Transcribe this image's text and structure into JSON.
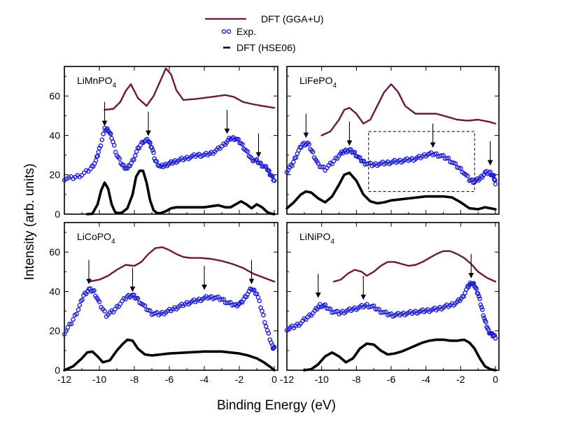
{
  "figure": {
    "ylabel": "Intensity (arb. units)",
    "xlabel": "Binding Energy (eV)",
    "legend": [
      {
        "label": "DFT (GGA+U)",
        "style": "line",
        "color": "#6b1840"
      },
      {
        "label": "Exp.",
        "style": "circles",
        "color": "#1f1fd6"
      },
      {
        "label": "DFT (HSE06)",
        "style": "thick-line",
        "color": "#000000"
      }
    ]
  },
  "chart_data": [
    {
      "type": "line",
      "title": "LiMnPO4",
      "label_main": "LiMnPO",
      "label_sub": "4",
      "xlim": [
        -12,
        0.2
      ],
      "ylim": [
        0,
        75
      ],
      "xticks": [
        -12,
        -10,
        -8,
        -6,
        -4,
        -2,
        0
      ],
      "yticks": [
        0,
        20,
        40,
        60
      ],
      "series": [
        {
          "name": "DFT (GGA+U)",
          "color": "#6b1840",
          "x": [
            -9.7,
            -9.2,
            -8.8,
            -8.5,
            -8.2,
            -7.8,
            -7.3,
            -6.9,
            -6.5,
            -6.2,
            -5.9,
            -5.6,
            -5.2,
            -4.5,
            -3.6,
            -2.8,
            -2.3,
            -1.8,
            -1.3,
            -0.7,
            0.0
          ],
          "y": [
            53,
            53.5,
            57,
            62.5,
            66,
            59,
            55,
            60,
            68,
            74,
            71,
            63,
            58,
            58.5,
            59.5,
            60.5,
            59.5,
            57,
            56,
            55,
            54
          ]
        },
        {
          "name": "Exp.",
          "color": "#1f1fd6",
          "x": [
            -12.0,
            -11.5,
            -11.0,
            -10.5,
            -10.2,
            -10.0,
            -9.7,
            -9.5,
            -9.3,
            -9.0,
            -8.7,
            -8.4,
            -8.1,
            -7.8,
            -7.5,
            -7.2,
            -7.0,
            -6.8,
            -6.5,
            -6.2,
            -5.9,
            -5.6,
            -5.2,
            -4.8,
            -4.4,
            -4.0,
            -3.6,
            -3.2,
            -2.8,
            -2.5,
            -2.2,
            -1.9,
            -1.6,
            -1.3,
            -1.0,
            -0.7,
            -0.4,
            -0.2,
            0.0
          ],
          "y": [
            18,
            18.5,
            20,
            23,
            27,
            33,
            43,
            43,
            39,
            30,
            25,
            23,
            27,
            33,
            37,
            37.5,
            34,
            27,
            24,
            25,
            26,
            27,
            28,
            29,
            30,
            30,
            31,
            33,
            36,
            38.5,
            38.5,
            36,
            32,
            28,
            27,
            25,
            23,
            20,
            17
          ]
        },
        {
          "name": "DFT (HSE06)",
          "color": "#000000",
          "x": [
            -10.7,
            -10.4,
            -10.1,
            -9.9,
            -9.7,
            -9.5,
            -9.3,
            -9.1,
            -8.9,
            -8.7,
            -8.4,
            -8.1,
            -7.9,
            -7.7,
            -7.5,
            -7.3,
            -7.1,
            -6.9,
            -6.7,
            -6.5,
            -6.2,
            -5.9,
            -5.6,
            -5.2,
            -4.8,
            -4.4,
            -4.0,
            -3.6,
            -3.2,
            -2.8,
            -2.5,
            -2.2,
            -1.9,
            -1.6,
            -1.3,
            -1.0,
            -0.7,
            -0.4,
            -0.2,
            0.0
          ],
          "y": [
            0,
            0.2,
            5,
            12,
            16,
            13,
            5,
            1,
            0.5,
            0.8,
            3,
            10,
            19,
            22,
            22,
            16,
            7,
            2,
            0.5,
            0.5,
            1.5,
            3,
            3.5,
            3.5,
            3.5,
            3.5,
            3.5,
            4,
            4.5,
            3.5,
            3.5,
            5,
            6.5,
            5,
            3,
            5,
            3.5,
            1,
            0.3,
            0
          ]
        }
      ],
      "annotations": [
        {
          "type": "arrow",
          "x": -9.7,
          "y_from": 57,
          "y_to": 45
        },
        {
          "type": "arrow",
          "x": -7.2,
          "y_from": 52,
          "y_to": 40
        },
        {
          "type": "arrow",
          "x": -2.7,
          "y_from": 53,
          "y_to": 41
        },
        {
          "type": "arrow",
          "x": -0.9,
          "y_from": 41,
          "y_to": 29
        }
      ]
    },
    {
      "type": "line",
      "title": "LiFePO4",
      "label_main": "LiFePO",
      "label_sub": "4",
      "xlim": [
        -12,
        0.2
      ],
      "ylim": [
        0,
        75
      ],
      "xticks": [
        -12,
        -10,
        -8,
        -6,
        -4,
        -2,
        0
      ],
      "yticks": [
        0,
        20,
        40,
        60
      ],
      "series": [
        {
          "name": "DFT (GGA+U)",
          "color": "#6b1840",
          "x": [
            -10.0,
            -9.5,
            -9.0,
            -8.7,
            -8.4,
            -8.0,
            -7.6,
            -7.2,
            -6.8,
            -6.4,
            -6.0,
            -5.6,
            -5.2,
            -4.6,
            -4.0,
            -3.4,
            -2.8,
            -2.2,
            -1.6,
            -1.0,
            -0.4,
            0.0
          ],
          "y": [
            40,
            42,
            48,
            53,
            54,
            51,
            46,
            48,
            55,
            62,
            66,
            62,
            55,
            51,
            51,
            51,
            49.5,
            48,
            47.5,
            48,
            47,
            46
          ]
        },
        {
          "name": "Exp.",
          "color": "#1f1fd6",
          "x": [
            -12.0,
            -11.7,
            -11.4,
            -11.1,
            -10.8,
            -10.5,
            -10.2,
            -9.8,
            -9.4,
            -9.0,
            -8.7,
            -8.4,
            -8.1,
            -7.8,
            -7.5,
            -7.1,
            -6.7,
            -6.3,
            -5.9,
            -5.5,
            -5.1,
            -4.7,
            -4.3,
            -3.9,
            -3.5,
            -3.1,
            -2.7,
            -2.3,
            -1.9,
            -1.5,
            -1.2,
            -0.9,
            -0.6,
            -0.3,
            -0.1,
            0.0
          ],
          "y": [
            22,
            25,
            31,
            35.5,
            36,
            31,
            25,
            23,
            26,
            30,
            32,
            32.5,
            31,
            28,
            26,
            25,
            25.5,
            26,
            26.5,
            27,
            27.5,
            28,
            29,
            30.5,
            30.5,
            29.5,
            28,
            25,
            22,
            17.5,
            16.5,
            18,
            21,
            21,
            19,
            16
          ]
        },
        {
          "name": "DFT (HSE06)",
          "color": "#000000",
          "x": [
            -12.0,
            -11.6,
            -11.2,
            -10.9,
            -10.6,
            -10.2,
            -9.8,
            -9.4,
            -9.0,
            -8.7,
            -8.4,
            -8.0,
            -7.6,
            -7.2,
            -6.8,
            -6.4,
            -6.0,
            -5.5,
            -5.0,
            -4.5,
            -4.0,
            -3.5,
            -3.0,
            -2.5,
            -2.0,
            -1.5,
            -1.0,
            -0.6,
            -0.3,
            0.0
          ],
          "y": [
            3,
            6,
            10,
            11.5,
            11,
            8,
            6,
            9,
            15,
            20,
            21,
            17,
            10,
            6.5,
            5.5,
            6,
            7,
            7.5,
            8,
            8.5,
            9,
            9,
            9,
            8.5,
            6,
            3,
            2.5,
            3.5,
            3,
            2.5
          ]
        }
      ],
      "annotations": [
        {
          "type": "arrow",
          "x": -10.9,
          "y_from": 51,
          "y_to": 39
        },
        {
          "type": "arrow",
          "x": -8.4,
          "y_from": 47,
          "y_to": 35
        },
        {
          "type": "arrow",
          "x": -3.6,
          "y_from": 46,
          "y_to": 34
        },
        {
          "type": "arrow",
          "x": -0.3,
          "y_from": 37,
          "y_to": 25
        },
        {
          "type": "dashed-box",
          "x0": -7.3,
          "x1": -1.2,
          "y0": 11.5,
          "y1": 42
        }
      ]
    },
    {
      "type": "line",
      "title": "LiCoPO4",
      "label_main": "LiCoPO",
      "label_sub": "4",
      "xlim": [
        -12,
        0.2
      ],
      "ylim": [
        0,
        75
      ],
      "xticks": [
        -12,
        -10,
        -8,
        -6,
        -4,
        -2,
        0
      ],
      "yticks": [
        0,
        20,
        40,
        60
      ],
      "series": [
        {
          "name": "DFT (GGA+U)",
          "color": "#6b1840",
          "x": [
            -10.6,
            -10.0,
            -9.5,
            -9.0,
            -8.5,
            -8.0,
            -7.6,
            -7.2,
            -6.8,
            -6.4,
            -6.0,
            -5.6,
            -5.2,
            -4.8,
            -4.2,
            -3.6,
            -3.0,
            -2.4,
            -1.8,
            -1.2,
            -0.6,
            0.0
          ],
          "y": [
            45,
            46,
            48,
            51,
            53.5,
            53,
            55,
            59,
            62,
            62.5,
            61,
            59,
            57.5,
            57,
            57,
            56.5,
            55.5,
            54,
            52,
            49,
            47,
            45
          ]
        },
        {
          "name": "Exp.",
          "color": "#1f1fd6",
          "x": [
            -12.0,
            -11.6,
            -11.2,
            -10.9,
            -10.6,
            -10.3,
            -10.0,
            -9.6,
            -9.2,
            -8.8,
            -8.4,
            -8.1,
            -7.8,
            -7.4,
            -7.0,
            -6.6,
            -6.2,
            -5.8,
            -5.4,
            -5.0,
            -4.6,
            -4.2,
            -3.8,
            -3.4,
            -3.0,
            -2.6,
            -2.2,
            -1.9,
            -1.6,
            -1.3,
            -1.0,
            -0.7,
            -0.4,
            -0.1,
            0.0
          ],
          "y": [
            19,
            24,
            31,
            38,
            41,
            40,
            34,
            28,
            30,
            34,
            37.5,
            38,
            36,
            32,
            29,
            28.5,
            29.5,
            31,
            32.5,
            34,
            35,
            36,
            37,
            37,
            36,
            34,
            33,
            34,
            38,
            41.5,
            39,
            30,
            20,
            12,
            11
          ]
        },
        {
          "name": "DFT (HSE06)",
          "color": "#000000",
          "x": [
            -12.0,
            -11.5,
            -11.0,
            -10.7,
            -10.4,
            -10.1,
            -9.8,
            -9.4,
            -9.0,
            -8.7,
            -8.4,
            -8.1,
            -7.8,
            -7.4,
            -7.0,
            -6.5,
            -6.0,
            -5.0,
            -4.0,
            -3.5,
            -3.0,
            -2.5,
            -2.0,
            -1.5,
            -1.0,
            -0.6,
            -0.2,
            0.0
          ],
          "y": [
            0,
            2,
            6,
            9,
            9.5,
            7,
            4,
            5,
            10,
            13,
            15.5,
            15,
            11,
            8,
            7.5,
            8,
            8.5,
            9,
            9.5,
            9.5,
            9.5,
            9,
            8.5,
            7.5,
            6,
            4,
            1.5,
            0
          ]
        }
      ],
      "annotations": [
        {
          "type": "arrow",
          "x": -10.6,
          "y_from": 56,
          "y_to": 44
        },
        {
          "type": "arrow",
          "x": -8.1,
          "y_from": 52,
          "y_to": 40
        },
        {
          "type": "arrow",
          "x": -4.0,
          "y_from": 53,
          "y_to": 41
        },
        {
          "type": "arrow",
          "x": -1.3,
          "y_from": 56,
          "y_to": 44
        }
      ]
    },
    {
      "type": "line",
      "title": "LiNiPO4",
      "label_main": "LiNiPO",
      "label_sub": "4",
      "xlim": [
        -12,
        0.2
      ],
      "ylim": [
        0,
        75
      ],
      "xticks": [
        -12,
        -10,
        -8,
        -6,
        -4,
        -2,
        0
      ],
      "yticks": [
        0,
        20,
        40,
        60
      ],
      "series": [
        {
          "name": "DFT (GGA+U)",
          "color": "#6b1840",
          "x": [
            -9.3,
            -8.9,
            -8.5,
            -8.1,
            -7.7,
            -7.4,
            -7.0,
            -6.6,
            -6.2,
            -5.8,
            -5.4,
            -5.0,
            -4.6,
            -4.2,
            -3.8,
            -3.4,
            -3.0,
            -2.6,
            -2.2,
            -1.8,
            -1.4,
            -1.0,
            -0.5,
            0.0
          ],
          "y": [
            45,
            46,
            49,
            51,
            50,
            48,
            50,
            53,
            55,
            55,
            54,
            53,
            53.5,
            55,
            57,
            59,
            60.5,
            60.5,
            59,
            57,
            54,
            50,
            47,
            45
          ]
        },
        {
          "name": "Exp.",
          "color": "#1f1fd6",
          "x": [
            -12.0,
            -11.6,
            -11.2,
            -10.8,
            -10.4,
            -10.1,
            -9.8,
            -9.4,
            -9.0,
            -8.6,
            -8.2,
            -7.8,
            -7.4,
            -7.0,
            -6.6,
            -6.2,
            -5.8,
            -5.4,
            -5.0,
            -4.6,
            -4.2,
            -3.8,
            -3.4,
            -3.0,
            -2.6,
            -2.2,
            -1.9,
            -1.6,
            -1.4,
            -1.2,
            -1.0,
            -0.8,
            -0.6,
            -0.4,
            -0.2,
            0.0
          ],
          "y": [
            21,
            22,
            24,
            27,
            30,
            33,
            32.5,
            30,
            29,
            30,
            31,
            32,
            33,
            32,
            30,
            28.5,
            28,
            28.5,
            29,
            29.5,
            30,
            30.5,
            31,
            32,
            33,
            34.5,
            37,
            42,
            44.5,
            43,
            39,
            32,
            25,
            20,
            18,
            17
          ]
        },
        {
          "name": "DFT (HSE06)",
          "color": "#000000",
          "x": [
            -11.0,
            -10.6,
            -10.2,
            -9.8,
            -9.4,
            -9.0,
            -8.6,
            -8.2,
            -7.8,
            -7.4,
            -7.0,
            -6.6,
            -6.2,
            -5.8,
            -5.4,
            -5.0,
            -4.6,
            -4.2,
            -3.8,
            -3.4,
            -3.0,
            -2.6,
            -2.2,
            -1.8,
            -1.5,
            -1.2,
            -0.9,
            -0.6,
            -0.3,
            0.0
          ],
          "y": [
            0,
            0.5,
            3,
            7,
            9,
            7,
            4,
            6,
            11,
            13.5,
            13,
            10,
            8,
            8.5,
            9.5,
            11,
            12.5,
            14,
            15,
            15.5,
            15.5,
            15,
            15,
            15.5,
            14,
            11,
            6,
            2,
            0.5,
            0
          ]
        }
      ],
      "annotations": [
        {
          "type": "arrow",
          "x": -10.2,
          "y_from": 49,
          "y_to": 37
        },
        {
          "type": "arrow",
          "x": -7.6,
          "y_from": 48,
          "y_to": 36
        },
        {
          "type": "arrow",
          "x": -1.4,
          "y_from": 59,
          "y_to": 47
        }
      ]
    }
  ]
}
